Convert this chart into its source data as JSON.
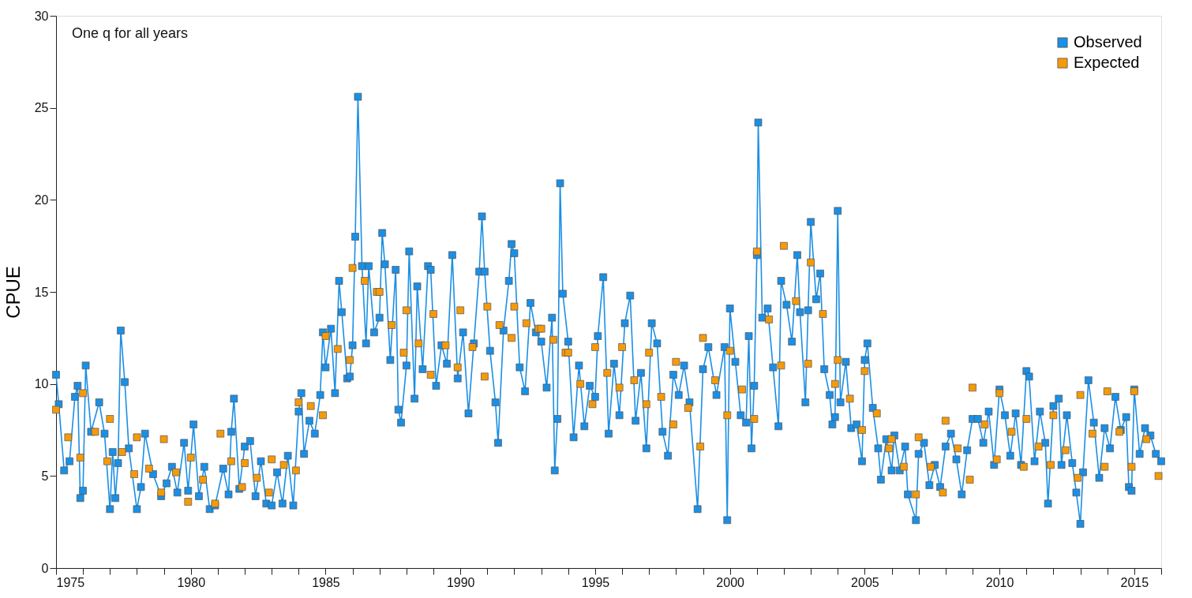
{
  "chart_data": {
    "type": "line",
    "ylabel": "CPUE",
    "annotations": [
      "One q for all years"
    ],
    "xlim": [
      1975,
      2016
    ],
    "ylim": [
      0,
      30
    ],
    "yticks": [
      0,
      5,
      10,
      15,
      20,
      25,
      30
    ],
    "xticks": [
      1975,
      {
        "value": 1976,
        "label": null
      },
      {
        "value": 1977,
        "label": null
      },
      {
        "value": 1978,
        "label": null
      },
      {
        "value": 1979,
        "label": null
      },
      1980,
      {
        "value": 1981,
        "label": null
      },
      {
        "value": 1982,
        "label": null
      },
      {
        "value": 1983,
        "label": null
      },
      {
        "value": 1984,
        "label": null
      },
      1985,
      {
        "value": 1986,
        "label": null
      },
      {
        "value": 1987,
        "label": null
      },
      {
        "value": 1988,
        "label": null
      },
      {
        "value": 1989,
        "label": null
      },
      1990,
      {
        "value": 1991,
        "label": null
      },
      {
        "value": 1992,
        "label": null
      },
      {
        "value": 1993,
        "label": null
      },
      {
        "value": 1994,
        "label": null
      },
      1995,
      {
        "value": 1996,
        "label": null
      },
      {
        "value": 1997,
        "label": null
      },
      {
        "value": 1998,
        "label": null
      },
      {
        "value": 1999,
        "label": null
      },
      2000,
      {
        "value": 2001,
        "label": null
      },
      {
        "value": 2002,
        "label": null
      },
      {
        "value": 2003,
        "label": null
      },
      {
        "value": 2004,
        "label": null
      },
      2005,
      {
        "value": 2006,
        "label": null
      },
      {
        "value": 2007,
        "label": null
      },
      {
        "value": 2008,
        "label": null
      },
      {
        "value": 2009,
        "label": null
      },
      2010,
      {
        "value": 2011,
        "label": null
      },
      {
        "value": 2012,
        "label": null
      },
      {
        "value": 2013,
        "label": null
      },
      {
        "value": 2014,
        "label": null
      },
      2015,
      {
        "value": 2016,
        "label": null
      }
    ],
    "grid": false,
    "legend": "top right",
    "marker": "square",
    "line_style": "solid",
    "series": [
      {
        "name": "Observed",
        "type": "line",
        "color": "#1a8fe6",
        "x": [
          1975.0,
          1975.1,
          1975.3,
          1975.5,
          1975.7,
          1975.8,
          1975.9,
          1976.0,
          1976.1,
          1976.3,
          1976.6,
          1976.8,
          1977.0,
          1977.1,
          1977.2,
          1977.3,
          1977.4,
          1977.55,
          1977.7,
          1978.0,
          1978.15,
          1978.3,
          1978.6,
          1978.9,
          1979.1,
          1979.3,
          1979.5,
          1979.75,
          1979.9,
          1980.1,
          1980.3,
          1980.5,
          1980.7,
          1980.9,
          1981.2,
          1981.4,
          1981.5,
          1981.6,
          1981.8,
          1982.0,
          1982.2,
          1982.4,
          1982.6,
          1982.8,
          1983.0,
          1983.2,
          1983.4,
          1983.6,
          1983.8,
          1984.0,
          1984.1,
          1984.2,
          1984.4,
          1984.6,
          1984.8,
          1984.9,
          1985.0,
          1985.2,
          1985.35,
          1985.5,
          1985.6,
          1985.8,
          1985.9,
          1986.0,
          1986.1,
          1986.2,
          1986.35,
          1986.5,
          1986.6,
          1986.8,
          1987.0,
          1987.1,
          1987.2,
          1987.4,
          1987.6,
          1987.7,
          1987.8,
          1988.0,
          1988.1,
          1988.3,
          1988.4,
          1988.6,
          1988.8,
          1988.9,
          1989.1,
          1989.3,
          1989.5,
          1989.7,
          1989.9,
          1990.1,
          1990.3,
          1990.5,
          1990.7,
          1990.8,
          1990.9,
          1991.1,
          1991.3,
          1991.4,
          1991.6,
          1991.8,
          1991.9,
          1992.0,
          1992.2,
          1992.4,
          1992.6,
          1992.8,
          1993.0,
          1993.2,
          1993.4,
          1993.5,
          1993.6,
          1993.7,
          1993.8,
          1994.0,
          1994.2,
          1994.4,
          1994.6,
          1994.8,
          1995.0,
          1995.1,
          1995.3,
          1995.5,
          1995.7,
          1995.9,
          1996.1,
          1996.3,
          1996.5,
          1996.7,
          1996.9,
          1997.1,
          1997.3,
          1997.5,
          1997.7,
          1997.9,
          1998.1,
          1998.3,
          1998.5,
          1998.8,
          1999.0,
          1999.2,
          1999.5,
          1999.8,
          1999.9,
          2000.0,
          2000.2,
          2000.4,
          2000.6,
          2000.7,
          2000.8,
          2000.9,
          2001.0,
          2001.05,
          2001.2,
          2001.4,
          2001.6,
          2001.8,
          2001.9,
          2002.1,
          2002.3,
          2002.5,
          2002.6,
          2002.8,
          2002.9,
          2003.0,
          2003.2,
          2003.35,
          2003.5,
          2003.7,
          2003.8,
          2003.9,
          2004.0,
          2004.1,
          2004.3,
          2004.5,
          2004.7,
          2004.9,
          2005.0,
          2005.1,
          2005.3,
          2005.5,
          2005.6,
          2005.8,
          2006.0,
          2006.1,
          2006.3,
          2006.5,
          2006.6,
          2006.9,
          2007.0,
          2007.2,
          2007.4,
          2007.6,
          2007.8,
          2008.0,
          2008.2,
          2008.4,
          2008.6,
          2008.8,
          2009.0,
          2009.2,
          2009.4,
          2009.6,
          2009.8,
          2010.0,
          2010.2,
          2010.4,
          2010.6,
          2010.8,
          2011.0,
          2011.1,
          2011.3,
          2011.5,
          2011.7,
          2011.8,
          2012.0,
          2012.2,
          2012.3,
          2012.5,
          2012.7,
          2012.85,
          2013.0,
          2013.1,
          2013.3,
          2013.5,
          2013.7,
          2013.9,
          2014.1,
          2014.3,
          2014.5,
          2014.7,
          2014.8,
          2014.9,
          2015.0,
          2015.2,
          2015.4,
          2015.6,
          2015.8,
          2016.0
        ],
        "values": [
          10.5,
          8.9,
          5.3,
          5.8,
          9.3,
          9.9,
          3.8,
          4.2,
          11.0,
          7.4,
          9.0,
          7.3,
          3.2,
          6.3,
          3.8,
          5.7,
          12.9,
          10.1,
          6.5,
          3.2,
          4.4,
          7.3,
          5.1,
          3.9,
          4.6,
          5.5,
          4.1,
          6.8,
          4.2,
          7.8,
          3.9,
          5.5,
          3.2,
          3.4,
          5.4,
          4.0,
          7.4,
          9.2,
          4.3,
          6.6,
          6.9,
          3.9,
          5.8,
          3.5,
          3.4,
          5.2,
          3.5,
          6.1,
          3.4,
          8.5,
          9.5,
          6.2,
          8.0,
          7.3,
          9.4,
          12.8,
          10.9,
          13.0,
          9.5,
          15.6,
          13.9,
          10.3,
          10.4,
          12.1,
          18.0,
          25.6,
          16.4,
          12.2,
          16.4,
          12.8,
          13.6,
          18.2,
          16.5,
          11.3,
          16.2,
          8.6,
          7.9,
          11.0,
          17.2,
          9.2,
          15.3,
          10.8,
          16.4,
          16.2,
          9.9,
          12.1,
          11.1,
          17.0,
          10.3,
          12.8,
          8.4,
          12.2,
          16.1,
          19.1,
          16.1,
          11.8,
          9.0,
          6.8,
          12.9,
          15.6,
          17.6,
          17.1,
          10.9,
          9.6,
          14.4,
          12.8,
          12.3,
          9.8,
          13.6,
          5.3,
          8.1,
          20.9,
          14.9,
          12.3,
          7.1,
          11.0,
          7.7,
          9.9,
          9.3,
          12.6,
          15.8,
          7.3,
          11.1,
          8.3,
          13.3,
          14.8,
          8.0,
          10.6,
          6.5,
          13.3,
          12.2,
          7.4,
          6.1,
          10.5,
          9.4,
          11.0,
          9.0,
          3.2,
          10.8,
          12.0,
          9.4,
          12.0,
          2.6,
          14.1,
          11.2,
          8.3,
          7.9,
          12.6,
          6.5,
          9.9,
          17.0,
          24.2,
          13.6,
          14.1,
          10.9,
          7.7,
          15.6,
          14.3,
          12.3,
          17.0,
          13.9,
          9.0,
          14.0,
          18.8,
          14.6,
          16.0,
          10.8,
          9.4,
          7.8,
          8.2,
          19.4,
          9.0,
          11.2,
          7.6,
          7.8,
          5.8,
          11.3,
          12.2,
          8.7,
          6.5,
          4.8,
          7.0,
          5.3,
          7.2,
          5.3,
          6.6,
          4.0,
          2.6,
          6.2,
          6.8,
          4.5,
          5.6,
          4.4,
          6.6,
          7.3,
          5.9,
          4.0,
          6.4,
          8.1,
          8.1,
          6.8,
          8.5,
          5.6,
          9.7,
          8.3,
          6.1,
          8.4,
          5.6,
          10.7,
          10.4,
          5.8,
          8.5,
          6.8,
          3.5,
          8.8,
          9.2,
          5.6,
          8.3,
          5.7,
          4.1,
          2.4,
          5.2,
          10.2,
          7.9,
          4.9,
          7.6,
          6.5,
          9.3,
          7.5,
          8.2,
          4.4,
          4.2,
          9.7,
          6.2,
          7.6,
          7.2,
          6.2,
          5.8
        ]
      },
      {
        "name": "Expected",
        "type": "scatter",
        "color": "#f59a0a",
        "x": [
          1975.0,
          1975.45,
          1975.9,
          1976.0,
          1976.45,
          1976.9,
          1977.0,
          1977.45,
          1977.9,
          1978.0,
          1978.45,
          1978.9,
          1979.0,
          1979.45,
          1979.9,
          1980.0,
          1980.45,
          1980.9,
          1981.1,
          1981.5,
          1981.9,
          1982.0,
          1982.45,
          1982.9,
          1983.0,
          1983.45,
          1983.9,
          1984.0,
          1984.45,
          1984.9,
          1985.0,
          1985.45,
          1985.9,
          1986.0,
          1986.45,
          1986.9,
          1987.0,
          1987.45,
          1987.9,
          1988.0,
          1988.45,
          1988.9,
          1989.0,
          1989.45,
          1989.9,
          1990.0,
          1990.45,
          1990.9,
          1991.0,
          1991.45,
          1991.9,
          1992.0,
          1992.45,
          1992.9,
          1993.0,
          1993.45,
          1993.9,
          1994.0,
          1994.45,
          1994.9,
          1995.0,
          1995.45,
          1995.9,
          1996.0,
          1996.45,
          1996.9,
          1997.0,
          1997.45,
          1997.9,
          1998.0,
          1998.45,
          1998.9,
          1999.0,
          1999.45,
          1999.9,
          2000.0,
          2000.45,
          2000.9,
          2001.0,
          2001.45,
          2001.9,
          2002.0,
          2002.45,
          2002.9,
          2003.0,
          2003.45,
          2003.9,
          2004.0,
          2004.45,
          2004.9,
          2005.0,
          2005.45,
          2005.9,
          2006.0,
          2006.45,
          2006.9,
          2007.0,
          2007.45,
          2007.9,
          2008.0,
          2008.45,
          2008.9,
          2009.0,
          2009.45,
          2009.9,
          2010.0,
          2010.45,
          2010.9,
          2011.0,
          2011.45,
          2011.9,
          2012.0,
          2012.45,
          2012.9,
          2013.0,
          2013.45,
          2013.9,
          2014.0,
          2014.45,
          2014.9,
          2015.0,
          2015.45,
          2015.9
        ],
        "values": [
          8.6,
          7.1,
          6.0,
          9.5,
          7.4,
          5.8,
          8.1,
          6.3,
          5.1,
          7.1,
          5.4,
          4.1,
          7.0,
          5.2,
          3.6,
          6.0,
          4.8,
          3.5,
          7.3,
          5.8,
          4.4,
          5.7,
          4.9,
          4.1,
          5.9,
          5.6,
          5.3,
          9.0,
          8.8,
          8.3,
          12.6,
          11.9,
          11.3,
          16.3,
          15.6,
          15.0,
          15.0,
          13.2,
          11.7,
          14.0,
          12.2,
          10.5,
          13.8,
          12.1,
          10.9,
          14.0,
          12.0,
          10.4,
          14.2,
          13.2,
          12.5,
          14.2,
          13.3,
          13.0,
          13.0,
          12.4,
          11.7,
          11.7,
          10.0,
          8.9,
          12.0,
          10.6,
          9.8,
          12.0,
          10.2,
          8.9,
          11.7,
          9.3,
          7.8,
          11.2,
          8.7,
          6.6,
          12.5,
          10.2,
          8.3,
          11.8,
          9.7,
          8.1,
          17.2,
          13.5,
          11.0,
          17.5,
          14.5,
          11.1,
          16.6,
          13.8,
          10.0,
          11.3,
          9.2,
          7.5,
          10.7,
          8.4,
          6.5,
          7.0,
          5.5,
          4.0,
          7.1,
          5.5,
          4.1,
          8.0,
          6.5,
          4.8,
          9.8,
          7.8,
          5.9,
          9.5,
          7.4,
          5.5,
          8.1,
          6.6,
          5.6,
          8.3,
          6.4,
          4.9,
          9.4,
          7.3,
          5.5,
          9.6,
          7.4,
          5.5,
          9.6,
          7.0,
          5.0
        ]
      }
    ]
  }
}
